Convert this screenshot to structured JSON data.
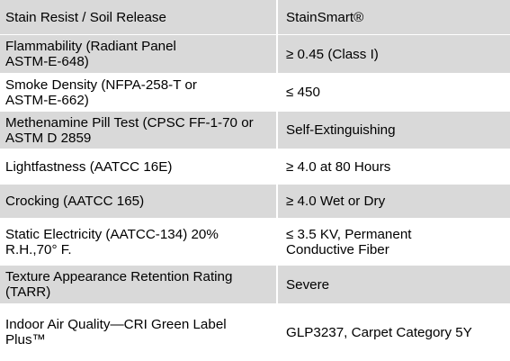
{
  "rows": [
    {
      "property": "Stain Resist / Soil Release",
      "value": "StainSmart®"
    },
    {
      "property": "Flammability (Radiant Panel ASTM-E-648)",
      "value": "≥  0.45 (Class I)"
    },
    {
      "property": "Smoke Density (NFPA-258-T or ASTM-E-662)",
      "value": "≤ 450"
    },
    {
      "property": "Methenamine Pill Test (CPSC FF-1-70 or ASTM D 2859",
      "value": "Self-Extinguishing"
    },
    {
      "property": "Lightfastness (AATCC 16E)",
      "value": "≥ 4.0 at 80 Hours"
    },
    {
      "property": "Crocking (AATCC 165)",
      "value": "≥ 4.0 Wet or Dry"
    },
    {
      "property": "Static Electricity (AATCC-134) 20% R.H.,70°  F.",
      "value": "≤ 3.5 KV, Permanent Conductive Fiber"
    },
    {
      "property": "Texture Appearance Retention Rating (TARR)",
      "value": "Severe"
    },
    {
      "property": "Indoor Air Quality—CRI Green Label Plus™",
      "value": "GLP3237, Carpet Category 5Y"
    }
  ],
  "colors": {
    "shaded_row": "#d9d9d9",
    "plain_row": "#ffffff",
    "text": "#000000"
  }
}
